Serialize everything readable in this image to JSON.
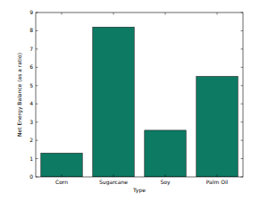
{
  "chart_data": {
    "type": "bar",
    "x_label": "Type",
    "y_label": "Net Energy Balance (as a ratio)",
    "categories": [
      "Corn",
      "Sugarcane",
      "Soy",
      "Palm Oil"
    ],
    "values": [
      1.3,
      8.2,
      2.55,
      5.5
    ],
    "color": "#0d7a63",
    "ylim": [
      0,
      9
    ],
    "yticks": [
      0,
      1,
      2,
      3,
      4,
      5,
      6,
      7,
      8,
      9
    ],
    "grid": false
  }
}
